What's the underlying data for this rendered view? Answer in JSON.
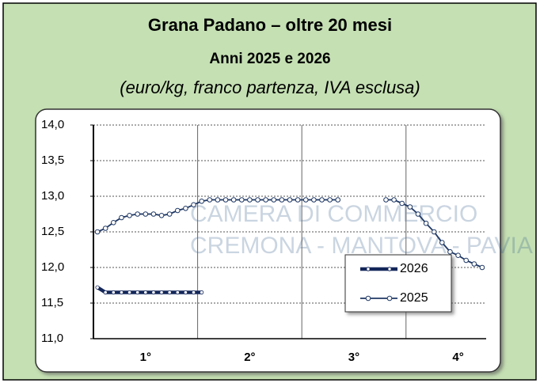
{
  "chart_data": {
    "type": "line",
    "title": "Grana Padano – oltre 20 mesi",
    "subtitle": "Anni 2025 e 2026",
    "note": "(euro/kg, franco partenza, IVA esclusa)",
    "watermark": [
      "CAMERA DI COMMERCIO",
      "CREMONA - MANTOVA - PAVIA"
    ],
    "x": [
      1,
      2,
      3,
      4,
      5,
      6,
      7,
      8,
      9,
      10,
      11,
      12,
      13,
      14,
      15,
      16,
      17,
      18,
      19,
      20,
      21,
      22,
      23,
      24,
      25,
      26,
      27,
      28,
      29,
      30,
      31,
      32,
      33,
      34,
      35,
      36,
      37,
      38,
      39,
      40,
      41,
      42,
      43,
      44,
      45,
      46,
      47,
      48,
      49
    ],
    "series": [
      {
        "name": "2026",
        "color": "#14275a",
        "values": [
          11.72,
          11.65,
          11.65,
          11.65,
          11.65,
          11.65,
          11.65,
          11.65,
          11.65,
          11.65,
          11.65,
          11.65,
          11.65,
          11.65,
          null,
          null,
          null,
          null,
          null,
          null,
          null,
          null,
          null,
          null,
          null,
          null,
          null,
          null,
          null,
          null,
          null,
          null,
          null,
          null,
          null,
          null,
          null,
          null,
          null,
          null,
          null,
          null,
          null,
          null,
          null,
          null,
          null,
          null,
          null
        ]
      },
      {
        "name": "2025",
        "color": "#1f3864",
        "values": [
          12.5,
          12.55,
          12.63,
          12.7,
          12.73,
          12.75,
          12.75,
          12.75,
          12.73,
          12.75,
          12.8,
          12.83,
          12.88,
          12.93,
          12.95,
          12.95,
          12.95,
          12.95,
          12.95,
          12.95,
          12.95,
          12.95,
          12.95,
          12.95,
          12.95,
          12.95,
          12.95,
          12.95,
          12.95,
          12.95,
          12.95,
          null,
          null,
          null,
          null,
          null,
          12.95,
          12.95,
          12.9,
          12.85,
          12.75,
          12.62,
          12.5,
          12.35,
          12.22,
          12.17,
          12.1,
          12.05,
          12.0
        ]
      }
    ],
    "xlim": [
      0.5,
      49.5
    ],
    "xticks": [
      {
        "value": 7,
        "label": "1°"
      },
      {
        "value": 20,
        "label": "2°"
      },
      {
        "value": 33,
        "label": "3°"
      },
      {
        "value": 46,
        "label": "4°"
      }
    ],
    "ylim": [
      11,
      14
    ],
    "yticks": [
      {
        "value": 11,
        "label": "11,0"
      },
      {
        "value": 11.5,
        "label": "11,5"
      },
      {
        "value": 12,
        "label": "12,0"
      },
      {
        "value": 12.5,
        "label": "12,5"
      },
      {
        "value": 13,
        "label": "13,0"
      },
      {
        "value": 13.5,
        "label": "13,5"
      },
      {
        "value": 14,
        "label": "14,0"
      }
    ],
    "grid": true
  }
}
